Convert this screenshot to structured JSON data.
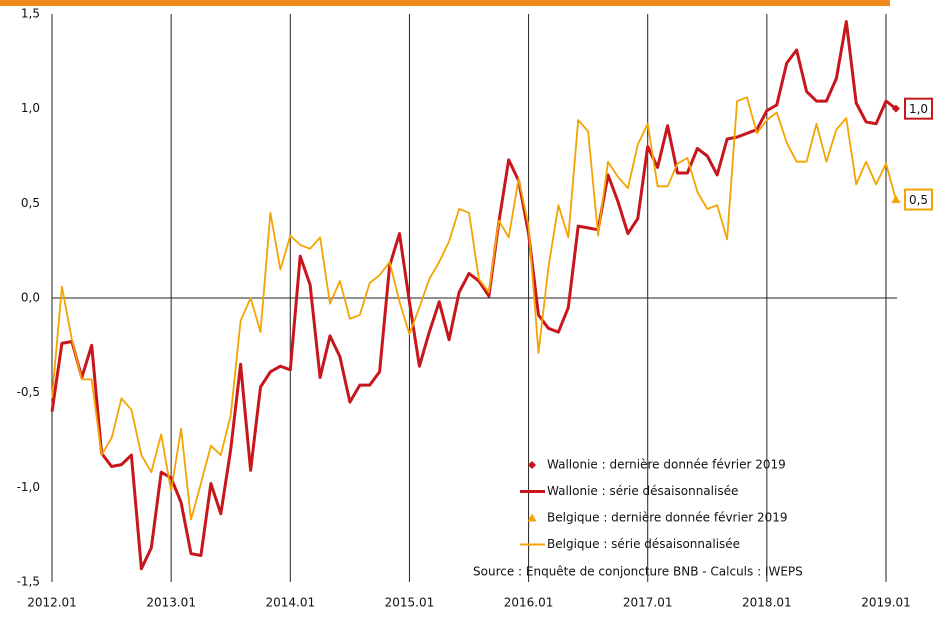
{
  "chart_data": {
    "type": "line",
    "categories": [
      "2012.01",
      null,
      null,
      null,
      null,
      null,
      null,
      null,
      null,
      null,
      null,
      null,
      "2013.01",
      null,
      null,
      null,
      null,
      null,
      null,
      null,
      null,
      null,
      null,
      null,
      "2014.01",
      null,
      null,
      null,
      null,
      null,
      null,
      null,
      null,
      null,
      null,
      null,
      "2015.01",
      null,
      null,
      null,
      null,
      null,
      null,
      null,
      null,
      null,
      null,
      null,
      "2016.01",
      null,
      null,
      null,
      null,
      null,
      null,
      null,
      null,
      null,
      null,
      null,
      "2017.01",
      null,
      null,
      null,
      null,
      null,
      null,
      null,
      null,
      null,
      null,
      null,
      "2018.01",
      null,
      null,
      null,
      null,
      null,
      null,
      null,
      null,
      null,
      null,
      null,
      "2019.01",
      null
    ],
    "ylim": [
      -1.5,
      1.5
    ],
    "yticks": [
      {
        "value": -1.5,
        "label": "-1,5"
      },
      {
        "value": -1,
        "label": "-1,0"
      },
      {
        "value": -0.5,
        "label": "-0,5"
      },
      {
        "value": 0,
        "label": "0,0"
      },
      {
        "value": 0.5,
        "label": "0,5"
      },
      {
        "value": 1,
        "label": "1,0"
      },
      {
        "value": 1.5,
        "label": "1,5"
      }
    ],
    "grid": "x",
    "series": [
      {
        "name": "Wallonie : dernière donnée février 2019",
        "color": "#c8161d",
        "marker": "diamond",
        "values": [
          null,
          null,
          null,
          null,
          null,
          null,
          null,
          null,
          null,
          null,
          null,
          null,
          null,
          null,
          null,
          null,
          null,
          null,
          null,
          null,
          null,
          null,
          null,
          null,
          null,
          null,
          null,
          null,
          null,
          null,
          null,
          null,
          null,
          null,
          null,
          null,
          null,
          null,
          null,
          null,
          null,
          null,
          null,
          null,
          null,
          null,
          null,
          null,
          null,
          null,
          null,
          null,
          null,
          null,
          null,
          null,
          null,
          null,
          null,
          null,
          null,
          null,
          null,
          null,
          null,
          null,
          null,
          null,
          null,
          null,
          null,
          null,
          null,
          null,
          null,
          null,
          null,
          null,
          null,
          null,
          null,
          null,
          null,
          null,
          null,
          1.0
        ],
        "value_labels": [
          null,
          null,
          null,
          null,
          null,
          null,
          null,
          null,
          null,
          null,
          null,
          null,
          null,
          null,
          null,
          null,
          null,
          null,
          null,
          null,
          null,
          null,
          null,
          null,
          null,
          null,
          null,
          null,
          null,
          null,
          null,
          null,
          null,
          null,
          null,
          null,
          null,
          null,
          null,
          null,
          null,
          null,
          null,
          null,
          null,
          null,
          null,
          null,
          null,
          null,
          null,
          null,
          null,
          null,
          null,
          null,
          null,
          null,
          null,
          null,
          null,
          null,
          null,
          null,
          null,
          null,
          null,
          null,
          null,
          null,
          null,
          null,
          null,
          null,
          null,
          null,
          null,
          null,
          null,
          null,
          null,
          null,
          null,
          null,
          null,
          "1,0"
        ]
      },
      {
        "name": "Wallonie : série désaisonnalisée",
        "color": "#c8161d",
        "values": [
          -0.6,
          -0.24,
          -0.23,
          -0.42,
          -0.25,
          -0.82,
          -0.89,
          -0.88,
          -0.83,
          -1.43,
          -1.32,
          -0.92,
          -0.95,
          -1.08,
          -1.35,
          -1.36,
          -0.98,
          -1.14,
          -0.8,
          -0.35,
          -0.91,
          -0.47,
          -0.39,
          -0.36,
          -0.38,
          0.22,
          0.07,
          -0.42,
          -0.2,
          -0.31,
          -0.55,
          -0.46,
          -0.46,
          -0.39,
          0.17,
          0.34,
          -0.02,
          -0.36,
          -0.18,
          -0.02,
          -0.22,
          0.03,
          0.13,
          0.09,
          0.01,
          0.4,
          0.73,
          0.62,
          0.34,
          -0.09,
          -0.16,
          -0.18,
          -0.05,
          0.38,
          0.37,
          0.36,
          0.65,
          0.51,
          0.34,
          0.42,
          0.8,
          0.69,
          0.91,
          0.66,
          0.66,
          0.79,
          0.75,
          0.65,
          0.84,
          0.85,
          0.87,
          0.89,
          0.99,
          1.02,
          1.24,
          1.31,
          1.09,
          1.04,
          1.04,
          1.16,
          1.46,
          1.03,
          0.93,
          0.92,
          1.04,
          1.0
        ]
      },
      {
        "name": "Belgique : dernière donnée février 2019",
        "color": "#f5a300",
        "marker": "triangle",
        "values": [
          null,
          null,
          null,
          null,
          null,
          null,
          null,
          null,
          null,
          null,
          null,
          null,
          null,
          null,
          null,
          null,
          null,
          null,
          null,
          null,
          null,
          null,
          null,
          null,
          null,
          null,
          null,
          null,
          null,
          null,
          null,
          null,
          null,
          null,
          null,
          null,
          null,
          null,
          null,
          null,
          null,
          null,
          null,
          null,
          null,
          null,
          null,
          null,
          null,
          null,
          null,
          null,
          null,
          null,
          null,
          null,
          null,
          null,
          null,
          null,
          null,
          null,
          null,
          null,
          null,
          null,
          null,
          null,
          null,
          null,
          null,
          null,
          null,
          null,
          null,
          null,
          null,
          null,
          null,
          null,
          null,
          null,
          null,
          null,
          null,
          0.52
        ],
        "value_labels": [
          null,
          null,
          null,
          null,
          null,
          null,
          null,
          null,
          null,
          null,
          null,
          null,
          null,
          null,
          null,
          null,
          null,
          null,
          null,
          null,
          null,
          null,
          null,
          null,
          null,
          null,
          null,
          null,
          null,
          null,
          null,
          null,
          null,
          null,
          null,
          null,
          null,
          null,
          null,
          null,
          null,
          null,
          null,
          null,
          null,
          null,
          null,
          null,
          null,
          null,
          null,
          null,
          null,
          null,
          null,
          null,
          null,
          null,
          null,
          null,
          null,
          null,
          null,
          null,
          null,
          null,
          null,
          null,
          null,
          null,
          null,
          null,
          null,
          null,
          null,
          null,
          null,
          null,
          null,
          null,
          null,
          null,
          null,
          null,
          null,
          "0,5"
        ]
      },
      {
        "name": "Belgique : série désaisonnalisée",
        "color": "#f5a300",
        "values": [
          -0.53,
          0.06,
          -0.22,
          -0.43,
          -0.43,
          -0.83,
          -0.74,
          -0.53,
          -0.59,
          -0.83,
          -0.92,
          -0.72,
          -1.02,
          -0.69,
          -1.17,
          -0.98,
          -0.78,
          -0.83,
          -0.62,
          -0.12,
          0.0,
          -0.18,
          0.45,
          0.15,
          0.33,
          0.28,
          0.26,
          0.32,
          -0.03,
          0.09,
          -0.11,
          -0.09,
          0.08,
          0.12,
          0.19,
          -0.02,
          -0.19,
          -0.05,
          0.1,
          0.19,
          0.3,
          0.47,
          0.45,
          0.1,
          0.03,
          0.41,
          0.32,
          0.63,
          0.38,
          -0.29,
          0.16,
          0.49,
          0.32,
          0.94,
          0.88,
          0.33,
          0.72,
          0.64,
          0.58,
          0.81,
          0.92,
          0.59,
          0.59,
          0.71,
          0.74,
          0.56,
          0.47,
          0.49,
          0.31,
          1.04,
          1.06,
          0.87,
          0.94,
          0.98,
          0.82,
          0.72,
          0.72,
          0.92,
          0.72,
          0.89,
          0.95,
          0.6,
          0.72,
          0.6,
          0.71,
          0.52
        ]
      }
    ],
    "source": "Source : Enquête de conjoncture BNB - Calculs : IWEPS"
  }
}
